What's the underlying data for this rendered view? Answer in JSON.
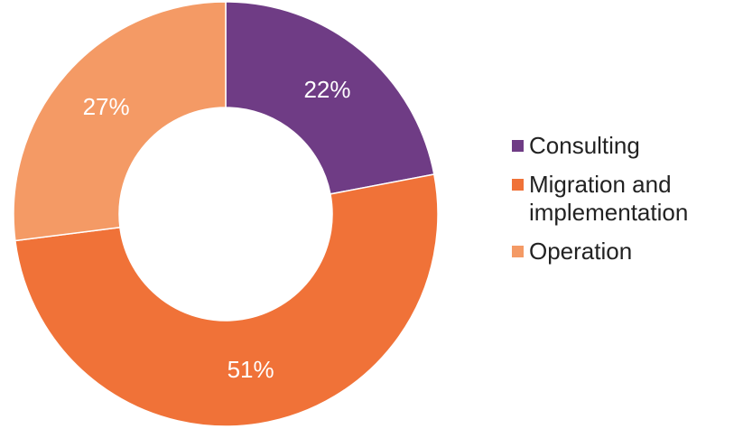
{
  "chart_data": {
    "type": "donut",
    "categories": [
      "Consulting",
      "Migration and implementation",
      "Operation"
    ],
    "values": [
      22,
      51,
      27
    ],
    "value_labels": [
      "22%",
      "51%",
      "27%"
    ],
    "colors": [
      "#6f3c85",
      "#f07238",
      "#f49a65"
    ],
    "legend": "right"
  }
}
